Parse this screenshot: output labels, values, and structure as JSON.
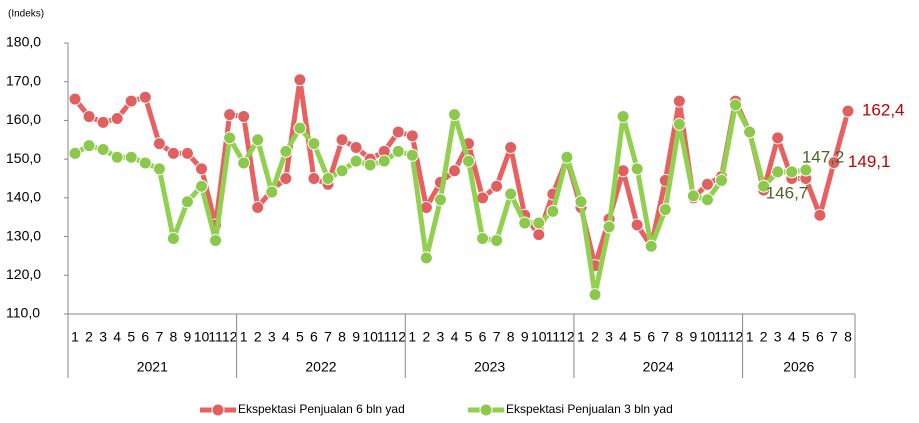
{
  "chart_data": {
    "type": "line",
    "y_label": "(Indeks)",
    "categories": [
      "1",
      "2",
      "3",
      "4",
      "5",
      "6",
      "7",
      "8",
      "9",
      "10",
      "11",
      "12",
      "1",
      "2",
      "3",
      "4",
      "5",
      "6",
      "7",
      "8",
      "9",
      "10",
      "11",
      "12",
      "1",
      "2",
      "3",
      "4",
      "5",
      "6",
      "7",
      "8",
      "9",
      "10",
      "11",
      "12",
      "1",
      "2",
      "3",
      "4",
      "5",
      "6",
      "7",
      "8",
      "9",
      "10",
      "11",
      "12",
      "1",
      "2",
      "3",
      "4",
      "5",
      "6",
      "7",
      "8"
    ],
    "category_groups": [
      "2021",
      "2021",
      "2021",
      "2021",
      "2021",
      "2021",
      "2021",
      "2021",
      "2021",
      "2021",
      "2021",
      "2021",
      "2022",
      "2022",
      "2022",
      "2022",
      "2022",
      "2022",
      "2022",
      "2022",
      "2022",
      "2022",
      "2022",
      "2022",
      "2023",
      "2023",
      "2023",
      "2023",
      "2023",
      "2023",
      "2023",
      "2023",
      "2023",
      "2023",
      "2023",
      "2023",
      "2024",
      "2024",
      "2024",
      "2024",
      "2024",
      "2024",
      "2024",
      "2024",
      "2024",
      "2024",
      "2024",
      "2024",
      "2026",
      "2026",
      "2026",
      "2026",
      "2026",
      "2026",
      "2026",
      "2026"
    ],
    "series": [
      {
        "name": "Ekspektasi Penjualan 6 bln yad",
        "color": "#e8605f",
        "marker_color": "#e06060",
        "label_color": "#c00000",
        "values": [
          165.5,
          161,
          159.5,
          160.5,
          165,
          166,
          154,
          151.5,
          151.5,
          147.5,
          133,
          161.5,
          161,
          137.5,
          142,
          145,
          170.5,
          145,
          143.5,
          155,
          153,
          150,
          152,
          157,
          156,
          137.5,
          144,
          147,
          154,
          140,
          143,
          153,
          135.5,
          130.5,
          141,
          150,
          137.5,
          122.5,
          134.5,
          147,
          133,
          127.5,
          144.5,
          165,
          140,
          143.5,
          145.5,
          165,
          157,
          142,
          155.5,
          145,
          145,
          135.5,
          149.1,
          162.4
        ],
        "value_labels": [
          null,
          null,
          null,
          null,
          null,
          null,
          null,
          null,
          null,
          null,
          null,
          null,
          null,
          null,
          null,
          null,
          null,
          null,
          null,
          null,
          null,
          null,
          null,
          null,
          null,
          null,
          null,
          null,
          null,
          null,
          null,
          null,
          null,
          null,
          null,
          null,
          null,
          null,
          null,
          null,
          null,
          null,
          null,
          null,
          null,
          null,
          null,
          null,
          null,
          null,
          null,
          null,
          null,
          null,
          "149,1",
          "162,4"
        ]
      },
      {
        "name": "Ekspektasi Penjualan 3 bln yad",
        "color": "#92d050",
        "marker_color": "#8cc84b",
        "label_color": "#4f6228",
        "values": [
          151.5,
          153.5,
          152.5,
          150.5,
          150.5,
          149,
          147.5,
          129.5,
          139,
          143,
          129,
          155.5,
          149,
          155,
          141.5,
          152,
          158,
          154,
          145,
          147,
          149.5,
          148.5,
          149.5,
          152,
          151,
          124.5,
          139.5,
          161.5,
          149.5,
          129.5,
          129,
          141,
          133.5,
          133.5,
          136.5,
          150.5,
          139,
          115,
          132.5,
          161,
          147.5,
          127.5,
          137,
          159,
          140.5,
          139.5,
          144.5,
          164,
          157,
          143,
          146.7,
          146.7,
          147.2,
          null,
          null,
          null
        ],
        "value_labels": [
          null,
          null,
          null,
          null,
          null,
          null,
          null,
          null,
          null,
          null,
          null,
          null,
          null,
          null,
          null,
          null,
          null,
          null,
          null,
          null,
          null,
          null,
          null,
          null,
          null,
          null,
          null,
          null,
          null,
          null,
          null,
          null,
          null,
          null,
          null,
          null,
          null,
          null,
          null,
          null,
          null,
          null,
          null,
          null,
          null,
          null,
          null,
          null,
          null,
          null,
          "146,7",
          null,
          "147,2",
          null,
          null,
          null
        ]
      }
    ],
    "ylim": [
      110,
      180
    ],
    "yticks": [
      {
        "value": 110,
        "label": "110,0"
      },
      {
        "value": 120,
        "label": "120,0"
      },
      {
        "value": 130,
        "label": "130,0"
      },
      {
        "value": 140,
        "label": "140,0"
      },
      {
        "value": 150,
        "label": "150,0"
      },
      {
        "value": 160,
        "label": "160,0"
      },
      {
        "value": 170,
        "label": "170,0"
      },
      {
        "value": 180,
        "label": "180,0"
      }
    ],
    "grid": false,
    "legend": "bottom"
  }
}
